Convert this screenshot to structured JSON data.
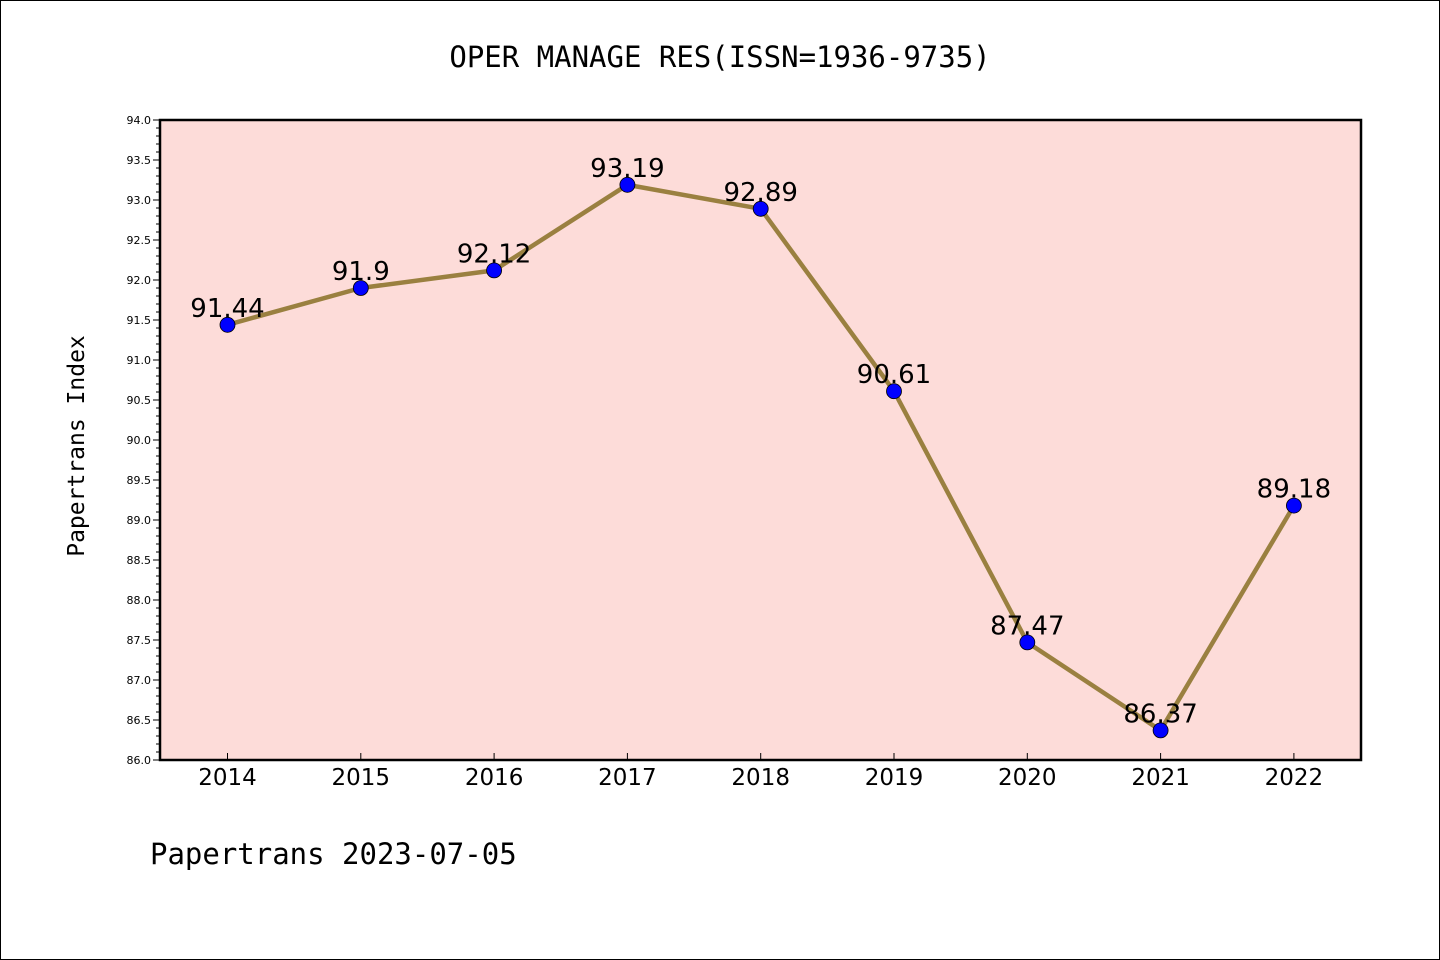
{
  "chart_data": {
    "type": "line",
    "title": "OPER MANAGE RES(ISSN=1936-9735)",
    "xlabel": "",
    "ylabel": "Papertrans Index",
    "categories": [
      "2014",
      "2015",
      "2016",
      "2017",
      "2018",
      "2019",
      "2020",
      "2021",
      "2022"
    ],
    "values": [
      91.44,
      91.9,
      92.12,
      93.19,
      92.89,
      90.61,
      87.47,
      86.37,
      89.18
    ],
    "data_labels": [
      "91.44",
      "91.9",
      "92.12",
      "93.19",
      "92.89",
      "90.61",
      "87.47",
      "86.37",
      "89.18"
    ],
    "ylim": [
      86.0,
      94.0
    ],
    "yticks": [
      "86.0",
      "86.5",
      "87.0",
      "87.5",
      "88.0",
      "88.5",
      "89.0",
      "89.5",
      "90.0",
      "90.5",
      "91.0",
      "91.5",
      "92.0",
      "92.5",
      "93.0",
      "93.5",
      "94.0"
    ],
    "grid": false,
    "colors": {
      "plot_background": "#fddcd9",
      "line": "#9a8040",
      "marker": "#0000ff"
    }
  },
  "footer": "Papertrans 2023-07-05"
}
